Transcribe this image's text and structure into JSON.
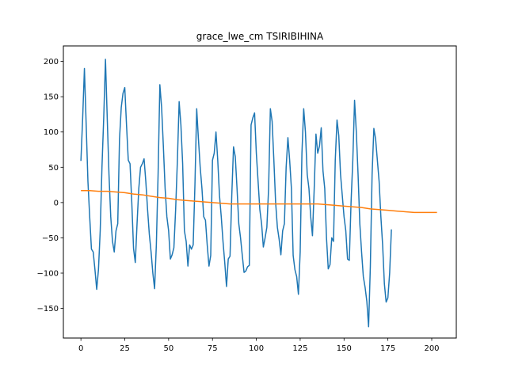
{
  "chart_data": {
    "type": "line",
    "title": "grace_lwe_cm TSIRIBIHINA",
    "xlabel": "",
    "ylabel": "",
    "xlim": [
      -10,
      214
    ],
    "ylim": [
      -192,
      222
    ],
    "grid": false,
    "legend": "none",
    "x_ticks": [
      0,
      25,
      50,
      75,
      100,
      125,
      150,
      175,
      200
    ],
    "y_ticks": [
      -150,
      -100,
      -50,
      0,
      50,
      100,
      150,
      200
    ],
    "series": [
      {
        "color": "#1f77b4",
        "points": [
          [
            0,
            59
          ],
          [
            1,
            120
          ],
          [
            2,
            190
          ],
          [
            3,
            110
          ],
          [
            4,
            30
          ],
          [
            5,
            -20
          ],
          [
            6,
            -66
          ],
          [
            7,
            -70
          ],
          [
            8,
            -95
          ],
          [
            9,
            -123
          ],
          [
            10,
            -95
          ],
          [
            11,
            -40
          ],
          [
            12,
            50
          ],
          [
            13,
            120
          ],
          [
            14,
            203
          ],
          [
            15,
            120
          ],
          [
            16,
            40
          ],
          [
            17,
            -20
          ],
          [
            18,
            -55
          ],
          [
            19,
            -70
          ],
          [
            20,
            -40
          ],
          [
            21,
            -30
          ],
          [
            22,
            90
          ],
          [
            23,
            135
          ],
          [
            24,
            155
          ],
          [
            25,
            163
          ],
          [
            26,
            110
          ],
          [
            27,
            60
          ],
          [
            28,
            55
          ],
          [
            29,
            0
          ],
          [
            30,
            -65
          ],
          [
            31,
            -85
          ],
          [
            32,
            -30
          ],
          [
            33,
            20
          ],
          [
            34,
            50
          ],
          [
            35,
            55
          ],
          [
            36,
            62
          ],
          [
            37,
            30
          ],
          [
            38,
            -10
          ],
          [
            39,
            -45
          ],
          [
            40,
            -70
          ],
          [
            41,
            -100
          ],
          [
            42,
            -122
          ],
          [
            43,
            -60
          ],
          [
            44,
            40
          ],
          [
            45,
            167
          ],
          [
            46,
            135
          ],
          [
            47,
            80
          ],
          [
            48,
            20
          ],
          [
            49,
            -20
          ],
          [
            50,
            -40
          ],
          [
            51,
            -80
          ],
          [
            52,
            -74
          ],
          [
            53,
            -64
          ],
          [
            54,
            -10
          ],
          [
            55,
            60
          ],
          [
            56,
            143
          ],
          [
            57,
            110
          ],
          [
            58,
            55
          ],
          [
            59,
            -40
          ],
          [
            60,
            -55
          ],
          [
            61,
            -90
          ],
          [
            62,
            -60
          ],
          [
            63,
            -66
          ],
          [
            64,
            -60
          ],
          [
            65,
            25
          ],
          [
            66,
            133
          ],
          [
            67,
            90
          ],
          [
            68,
            50
          ],
          [
            69,
            20
          ],
          [
            70,
            -20
          ],
          [
            71,
            -25
          ],
          [
            72,
            -60
          ],
          [
            73,
            -90
          ],
          [
            74,
            -75
          ],
          [
            75,
            60
          ],
          [
            76,
            70
          ],
          [
            77,
            100
          ],
          [
            78,
            60
          ],
          [
            79,
            10
          ],
          [
            80,
            -20
          ],
          [
            81,
            -55
          ],
          [
            82,
            -85
          ],
          [
            83,
            -119
          ],
          [
            84,
            -80
          ],
          [
            85,
            -76
          ],
          [
            86,
            10
          ],
          [
            87,
            79
          ],
          [
            88,
            65
          ],
          [
            89,
            20
          ],
          [
            90,
            -30
          ],
          [
            91,
            -50
          ],
          [
            92,
            -75
          ],
          [
            93,
            -99
          ],
          [
            94,
            -97
          ],
          [
            95,
            -91
          ],
          [
            96,
            -89
          ],
          [
            97,
            110
          ],
          [
            98,
            120
          ],
          [
            99,
            127
          ],
          [
            100,
            70
          ],
          [
            101,
            30
          ],
          [
            102,
            -10
          ],
          [
            103,
            -30
          ],
          [
            104,
            -63
          ],
          [
            105,
            -50
          ],
          [
            106,
            -35
          ],
          [
            107,
            20
          ],
          [
            108,
            133
          ],
          [
            109,
            115
          ],
          [
            110,
            60
          ],
          [
            111,
            0
          ],
          [
            112,
            -35
          ],
          [
            113,
            -52
          ],
          [
            114,
            -74
          ],
          [
            115,
            -40
          ],
          [
            116,
            -30
          ],
          [
            117,
            50
          ],
          [
            118,
            92
          ],
          [
            119,
            60
          ],
          [
            120,
            20
          ],
          [
            121,
            -75
          ],
          [
            122,
            -95
          ],
          [
            123,
            -105
          ],
          [
            124,
            -130
          ],
          [
            125,
            -70
          ],
          [
            126,
            70
          ],
          [
            127,
            133
          ],
          [
            128,
            100
          ],
          [
            129,
            40
          ],
          [
            130,
            20
          ],
          [
            131,
            -20
          ],
          [
            132,
            -47
          ],
          [
            133,
            20
          ],
          [
            134,
            97
          ],
          [
            135,
            70
          ],
          [
            136,
            80
          ],
          [
            137,
            106
          ],
          [
            138,
            45
          ],
          [
            139,
            20
          ],
          [
            140,
            -50
          ],
          [
            141,
            -94
          ],
          [
            142,
            -88
          ],
          [
            143,
            -50
          ],
          [
            144,
            -55
          ],
          [
            145,
            60
          ],
          [
            146,
            117
          ],
          [
            147,
            95
          ],
          [
            148,
            40
          ],
          [
            149,
            10
          ],
          [
            150,
            -20
          ],
          [
            151,
            -40
          ],
          [
            152,
            -80
          ],
          [
            153,
            -82
          ],
          [
            154,
            0
          ],
          [
            155,
            60
          ],
          [
            156,
            145
          ],
          [
            157,
            100
          ],
          [
            158,
            40
          ],
          [
            159,
            -30
          ],
          [
            160,
            -70
          ],
          [
            161,
            -105
          ],
          [
            162,
            -120
          ],
          [
            163,
            -140
          ],
          [
            164,
            -176
          ],
          [
            165,
            -90
          ],
          [
            166,
            40
          ],
          [
            167,
            105
          ],
          [
            168,
            90
          ],
          [
            169,
            60
          ],
          [
            170,
            30
          ],
          [
            171,
            -20
          ],
          [
            172,
            -60
          ],
          [
            173,
            -115
          ],
          [
            174,
            -141
          ],
          [
            175,
            -135
          ],
          [
            176,
            -100
          ],
          [
            177,
            -38
          ]
        ]
      },
      {
        "color": "#ff7f0e",
        "points": [
          [
            0,
            17
          ],
          [
            5,
            17
          ],
          [
            10,
            16
          ],
          [
            15,
            16
          ],
          [
            20,
            15
          ],
          [
            25,
            14
          ],
          [
            30,
            12
          ],
          [
            35,
            11
          ],
          [
            40,
            9
          ],
          [
            45,
            7
          ],
          [
            50,
            6
          ],
          [
            55,
            4
          ],
          [
            60,
            3
          ],
          [
            65,
            2
          ],
          [
            70,
            1
          ],
          [
            75,
            0
          ],
          [
            80,
            -1
          ],
          [
            85,
            -2
          ],
          [
            90,
            -2
          ],
          [
            95,
            -2
          ],
          [
            100,
            -2
          ],
          [
            105,
            -2
          ],
          [
            110,
            -2
          ],
          [
            115,
            -2
          ],
          [
            120,
            -2
          ],
          [
            125,
            -2
          ],
          [
            130,
            -2
          ],
          [
            135,
            -2
          ],
          [
            140,
            -3
          ],
          [
            145,
            -4
          ],
          [
            150,
            -5
          ],
          [
            155,
            -6
          ],
          [
            160,
            -7
          ],
          [
            165,
            -9
          ],
          [
            170,
            -10
          ],
          [
            175,
            -11
          ],
          [
            180,
            -12
          ],
          [
            185,
            -13
          ],
          [
            190,
            -14
          ],
          [
            195,
            -14
          ],
          [
            200,
            -14
          ],
          [
            203,
            -14
          ]
        ]
      }
    ]
  }
}
